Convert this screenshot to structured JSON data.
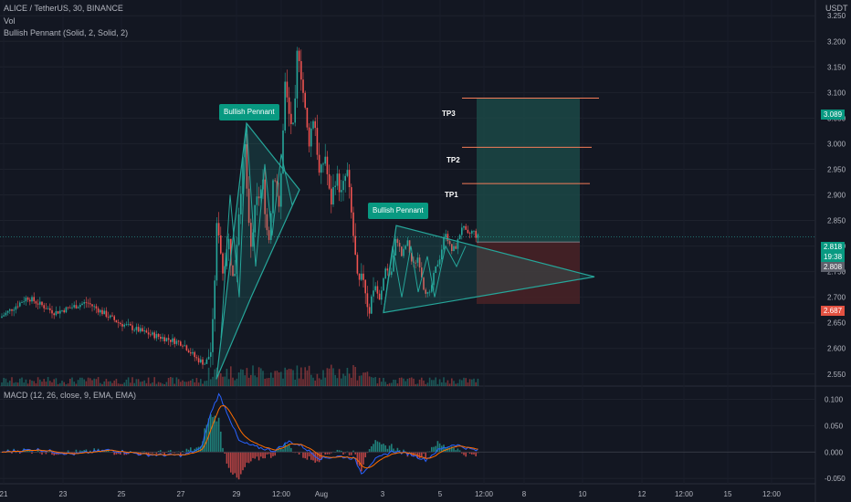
{
  "header": {
    "symbol_line": "ALICE / TetherUS, 30, BINANCE",
    "vol_label": "Vol",
    "indicator_line": "Bullish Pennant (Solid, 2, Solid, 2)",
    "macd_line": "MACD (12, 26, close, 9, EMA, EMA)",
    "currency": "USDT"
  },
  "colors": {
    "background": "#131722",
    "up": "#26a69a",
    "down": "#ef5350",
    "pennant": "#26a69a",
    "profit_zone": "#1b4b49",
    "loss_zone": "#4a2226",
    "tp_line": "#f57c58",
    "macd": "#2962ff",
    "signal": "#ff6d00"
  },
  "annotations": {
    "pennants": [
      "Bullish Pennant",
      "Bullish Pennant"
    ],
    "targets": [
      "TP3",
      "TP2",
      "TP1"
    ]
  },
  "price_tags": {
    "tp3": "3.089",
    "last": "2.818",
    "countdown": "19:38",
    "entry": "2.808",
    "stop": "2.687"
  },
  "chart_data": [
    {
      "type": "candlestick",
      "title": "ALICE / TetherUS, 30, BINANCE",
      "ylabel": "USDT",
      "ylim": [
        2.53,
        3.27
      ],
      "yticks": [
        "3.250",
        "3.200",
        "3.150",
        "3.100",
        "3.050",
        "3.000",
        "2.950",
        "2.900",
        "2.850",
        "2.800",
        "2.750",
        "2.700",
        "2.650",
        "2.600",
        "2.550"
      ],
      "xticks": [
        "21",
        "23",
        "25",
        "27",
        "29",
        "12:00",
        "Aug",
        "3",
        "5",
        "12:00",
        "8",
        "10",
        "12",
        "12:00",
        "15",
        "12:00"
      ],
      "price_path": [
        [
          0,
          2.66
        ],
        [
          30,
          2.7
        ],
        [
          60,
          2.67
        ],
        [
          95,
          2.69
        ],
        [
          130,
          2.65
        ],
        [
          160,
          2.63
        ],
        [
          200,
          2.61
        ],
        [
          215,
          2.58
        ],
        [
          225,
          2.57
        ],
        [
          232,
          2.6
        ],
        [
          238,
          2.86
        ],
        [
          244,
          2.75
        ],
        [
          250,
          2.82
        ],
        [
          256,
          2.72
        ],
        [
          262,
          2.88
        ],
        [
          268,
          3.0
        ],
        [
          274,
          2.78
        ],
        [
          280,
          2.88
        ],
        [
          288,
          2.92
        ],
        [
          294,
          2.8
        ],
        [
          300,
          2.96
        ],
        [
          306,
          2.86
        ],
        [
          312,
          3.12
        ],
        [
          316,
          3.06
        ],
        [
          322,
          3.02
        ],
        [
          326,
          3.2
        ],
        [
          332,
          3.1
        ],
        [
          338,
          3.0
        ],
        [
          344,
          3.06
        ],
        [
          350,
          2.93
        ],
        [
          356,
          2.98
        ],
        [
          362,
          2.88
        ],
        [
          368,
          2.94
        ],
        [
          374,
          2.9
        ],
        [
          380,
          2.95
        ],
        [
          386,
          2.84
        ],
        [
          392,
          2.72
        ],
        [
          398,
          2.74
        ],
        [
          404,
          2.67
        ],
        [
          410,
          2.73
        ],
        [
          416,
          2.69
        ],
        [
          422,
          2.76
        ],
        [
          428,
          2.74
        ],
        [
          434,
          2.82
        ],
        [
          440,
          2.78
        ],
        [
          446,
          2.81
        ],
        [
          452,
          2.76
        ],
        [
          458,
          2.78
        ],
        [
          464,
          2.72
        ],
        [
          470,
          2.7
        ],
        [
          476,
          2.75
        ],
        [
          482,
          2.78
        ],
        [
          488,
          2.83
        ],
        [
          494,
          2.79
        ],
        [
          500,
          2.8
        ],
        [
          506,
          2.84
        ],
        [
          512,
          2.82
        ],
        [
          518,
          2.83
        ],
        [
          522,
          2.818
        ]
      ],
      "pennants": [
        {
          "label": "Bullish Pennant",
          "points": [
            [
              237,
              2.54
            ],
            [
              270,
              3.04
            ],
            [
              328,
              2.91
            ],
            [
              275,
              2.7
            ]
          ]
        },
        {
          "label": "Bullish Pennant",
          "points": [
            [
              420,
              2.67
            ],
            [
              434,
              2.84
            ],
            [
              651,
              2.74
            ],
            [
              470,
              2.685
            ]
          ]
        }
      ],
      "targets": [
        {
          "label": "TP3",
          "value": 3.089
        },
        {
          "label": "TP2",
          "value": 2.993
        },
        {
          "label": "TP1",
          "value": 2.922
        }
      ],
      "entry": 2.808,
      "stop": 2.687,
      "last": 2.818
    },
    {
      "type": "macd",
      "title": "MACD (12, 26, close, 9, EMA, EMA)",
      "ylim": [
        -0.06,
        0.125
      ],
      "yticks": [
        "0.100",
        "0.050",
        "0.000",
        "-0.050"
      ],
      "macd_path": [
        [
          0,
          0.0
        ],
        [
          40,
          0.005
        ],
        [
          80,
          -0.004
        ],
        [
          120,
          0.004
        ],
        [
          160,
          -0.005
        ],
        [
          200,
          -0.006
        ],
        [
          220,
          0.006
        ],
        [
          232,
          0.08
        ],
        [
          240,
          0.11
        ],
        [
          250,
          0.07
        ],
        [
          262,
          0.02
        ],
        [
          280,
          0.01
        ],
        [
          300,
          0.002
        ],
        [
          316,
          0.02
        ],
        [
          330,
          0.012
        ],
        [
          350,
          -0.012
        ],
        [
          372,
          -0.008
        ],
        [
          388,
          -0.012
        ],
        [
          396,
          -0.04
        ],
        [
          410,
          -0.015
        ],
        [
          430,
          0.002
        ],
        [
          450,
          -0.004
        ],
        [
          466,
          -0.015
        ],
        [
          480,
          0.004
        ],
        [
          498,
          0.015
        ],
        [
          510,
          0.008
        ],
        [
          524,
          0.002
        ]
      ]
    }
  ]
}
